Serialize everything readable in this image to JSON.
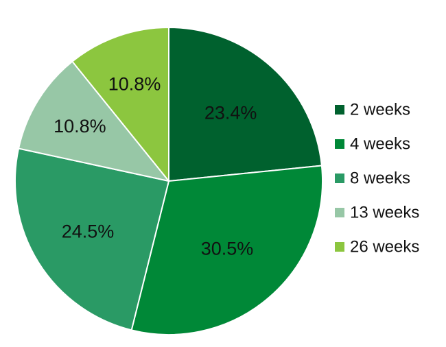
{
  "chart_data": {
    "type": "pie",
    "title": "",
    "legend_position": "right",
    "start_angle": "12 o'clock",
    "direction": "clockwise",
    "slices": [
      {
        "label": "2 weeks",
        "value": 23.4,
        "value_label": "23.4%",
        "color": "#00612e"
      },
      {
        "label": "4 weeks",
        "value": 30.5,
        "value_label": "30.5%",
        "color": "#008837"
      },
      {
        "label": "8 weeks",
        "value": 24.5,
        "value_label": "24.5%",
        "color": "#2a9a65"
      },
      {
        "label": "13 weeks",
        "value": 10.8,
        "value_label": "10.8%",
        "color": "#97c7a6"
      },
      {
        "label": "26 weeks",
        "value": 10.8,
        "value_label": "10.8%",
        "color": "#8cc63f"
      }
    ]
  }
}
